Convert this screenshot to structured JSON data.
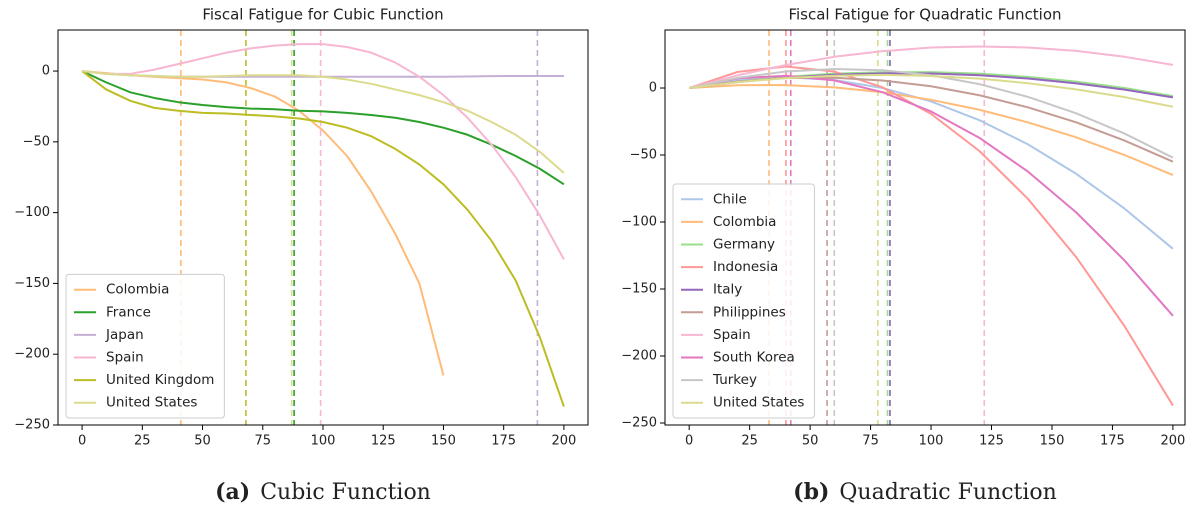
{
  "chart_data": [
    {
      "type": "line",
      "title": "Fiscal Fatigue for Cubic Function",
      "caption_label": "(a)",
      "caption": "Cubic Function",
      "x": [
        0,
        10,
        20,
        30,
        40,
        50,
        60,
        70,
        80,
        90,
        100,
        110,
        120,
        130,
        140,
        150,
        160,
        170,
        180,
        190,
        200
      ],
      "xlim": [
        -10,
        210
      ],
      "xticks": [
        0,
        25,
        50,
        75,
        100,
        125,
        150,
        175,
        200
      ],
      "ylim": [
        -250,
        29
      ],
      "yticks": [
        {
          "value": -250,
          "label": "−250"
        },
        {
          "value": -200,
          "label": "−200"
        },
        {
          "value": -150,
          "label": "−150"
        },
        {
          "value": -100,
          "label": "−100"
        },
        {
          "value": -50,
          "label": "−50"
        },
        0
      ],
      "grid": false,
      "legend": "lower left",
      "series": [
        {
          "name": "Colombia",
          "color": "#ffbb78",
          "vline": 41,
          "values": [
            0,
            -1.5,
            -3,
            -4,
            -5,
            -6,
            -8,
            -12,
            -18,
            -28,
            -42,
            -60,
            -85,
            -115,
            -150,
            -215,
            null,
            null,
            null,
            null,
            null
          ]
        },
        {
          "name": "France",
          "color": "#2ca02c",
          "vline": 88,
          "values": [
            0,
            -8,
            -15,
            -19,
            -22,
            -24,
            -25.5,
            -26.5,
            -27,
            -28,
            -28.5,
            -29.5,
            -31,
            -33,
            -36,
            -40,
            -45,
            -52,
            -60,
            -69,
            -80
          ]
        },
        {
          "name": "Japan",
          "color": "#c5b0d5",
          "vline": 189,
          "values": [
            0,
            -2,
            -3,
            -3.5,
            -4,
            -4,
            -4,
            -4,
            -4,
            -4,
            -4,
            -4,
            -4,
            -4,
            -4,
            -4,
            -3.8,
            -3.6,
            -3.5,
            -3.5,
            -3.5
          ]
        },
        {
          "name": "Spain",
          "color": "#f7b6d2",
          "vline": 99,
          "values": [
            0,
            -2,
            -2,
            1,
            5,
            9,
            13,
            16,
            18,
            19,
            19,
            17,
            13,
            6,
            -4,
            -17,
            -33,
            -52,
            -75,
            -102,
            -133
          ]
        },
        {
          "name": "United Kingdom",
          "color": "#bcbd22",
          "vline": 68,
          "values": [
            0,
            -13,
            -21,
            -26,
            -28,
            -29.5,
            -30,
            -31,
            -32,
            -33.5,
            -36,
            -40,
            -46,
            -55,
            -66,
            -80,
            -98,
            -120,
            -148,
            -188,
            -237
          ]
        },
        {
          "name": "United States",
          "color": "#dbdb8d",
          "vline": 87,
          "values": [
            0,
            -2,
            -3,
            -3.5,
            -4,
            -4,
            -3.5,
            -3,
            -3,
            -3,
            -4,
            -6,
            -9,
            -13,
            -17,
            -22,
            -28,
            -36,
            -45,
            -57,
            -72
          ]
        }
      ]
    },
    {
      "type": "line",
      "title": "Fiscal Fatigue for Quadratic Function",
      "caption_label": "(b)",
      "caption": "Quadratic Function",
      "x": [
        0,
        20,
        40,
        60,
        80,
        100,
        120,
        140,
        160,
        180,
        200
      ],
      "xlim": [
        -10,
        205
      ],
      "xticks": [
        0,
        25,
        50,
        75,
        100,
        125,
        150,
        175,
        200
      ],
      "ylim": [
        -251.5,
        43.3
      ],
      "yticks": [
        {
          "value": -250,
          "label": "−250"
        },
        {
          "value": -200,
          "label": "−200"
        },
        {
          "value": -150,
          "label": "−150"
        },
        {
          "value": -100,
          "label": "−100"
        },
        {
          "value": -50,
          "label": "−50"
        },
        0
      ],
      "grid": false,
      "legend": "lower left",
      "series": [
        {
          "name": "Chile",
          "color": "#aec7e8",
          "vline": 83,
          "values": [
            0,
            6,
            8,
            6,
            0,
            -10,
            -24,
            -42,
            -64,
            -90,
            -120
          ]
        },
        {
          "name": "Colombia",
          "color": "#ffbb78",
          "vline": 33,
          "values": [
            0,
            2.1,
            2.2,
            0.5,
            -3.2,
            -8.8,
            -16.2,
            -25.6,
            -36.8,
            -50,
            -65
          ]
        },
        {
          "name": "Germany",
          "color": "#98df8a",
          "vline": 82,
          "values": [
            0,
            4.7,
            8.3,
            10.7,
            11.8,
            11.9,
            10.7,
            8.3,
            4.8,
            0,
            -6
          ]
        },
        {
          "name": "Indonesia",
          "color": "#ff9896",
          "vline": 40,
          "values": [
            0,
            12,
            16.1,
            12.3,
            0.5,
            -19.3,
            -47,
            -82.6,
            -126.2,
            -177.7,
            -237
          ]
        },
        {
          "name": "Italy",
          "color": "#9467bd",
          "vline": 83,
          "values": [
            0,
            4.4,
            7.7,
            9.9,
            10.9,
            10.8,
            9.5,
            7.1,
            3.5,
            -1.2,
            -7
          ]
        },
        {
          "name": "Philippines",
          "color": "#c49c94",
          "vline": 57,
          "values": [
            0,
            4.9,
            7.4,
            7.7,
            5.6,
            1.3,
            -5.4,
            -14.4,
            -25.6,
            -39.2,
            -55
          ]
        },
        {
          "name": "Spain",
          "color": "#f7b6d2",
          "vline": 122,
          "values": [
            0,
            9.5,
            17.2,
            23.3,
            27.5,
            30.2,
            31,
            30.2,
            27.7,
            23.3,
            17.3
          ]
        },
        {
          "name": "South Korea",
          "color": "#e377c2",
          "vline": 42,
          "values": [
            0,
            7.3,
            9.2,
            5.7,
            -3.2,
            -17.5,
            -37.2,
            -62.3,
            -92.8,
            -128.7,
            -170
          ]
        },
        {
          "name": "Turkey",
          "color": "#c7c7c7",
          "vline": 60,
          "values": [
            0,
            7.6,
            12.3,
            14.2,
            13.3,
            9.5,
            2.9,
            -6.6,
            -18.9,
            -34,
            -52
          ]
        },
        {
          "name": "United States",
          "color": "#dbdb8d",
          "vline": 78,
          "values": [
            0,
            4.4,
            7.4,
            9.2,
            9.8,
            9,
            7,
            3.6,
            -1,
            -6.8,
            -14
          ]
        }
      ]
    }
  ]
}
